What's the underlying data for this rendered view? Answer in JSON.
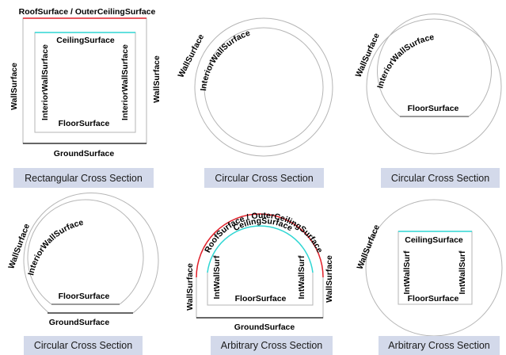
{
  "colors": {
    "roof": "#e0202a",
    "ceiling": "#2ed6d3",
    "wall": "#b5b5b5",
    "ground": "#333333",
    "caption_bg": "#d3d9ea"
  },
  "panels": [
    {
      "caption": "Rectangular Cross Section",
      "roof_label": "RoofSurface / OuterCeilingSurface",
      "ceiling_label": "CeilingSurface",
      "interior_left_label": "InteriorWallSurface",
      "interior_right_label": "InteriorWallSurface",
      "floor_label": "FloorSurface",
      "wall_left_label": "WallSurface",
      "wall_right_label": "WallSurface",
      "ground_label": "GroundSurface"
    },
    {
      "caption": "Circular Cross Section",
      "wall_label": "WallSurface",
      "interior_label": "InteriorWallSurface"
    },
    {
      "caption": "Circular Cross Section",
      "wall_label": "WallSurface",
      "interior_label": "InteriorWallSurface",
      "floor_label": "FloorSurface"
    },
    {
      "caption": "Circular Cross Section",
      "wall_label": "WallSurface",
      "interior_label": "InteriorWallSurface",
      "floor_label": "FloorSurface",
      "ground_label": "GroundSurface"
    },
    {
      "caption": "Arbitrary Cross Section",
      "roof_label": "RoofSurface / OuterCeilingSurface",
      "ceiling_label": "CeilingSurface",
      "int_left_label": "IntWallSurf",
      "int_right_label": "IntWallSurf",
      "floor_label": "FloorSurface",
      "wall_left_label": "WallSurface",
      "wall_right_label": "WallSurface",
      "ground_label": "GroundSurface"
    },
    {
      "caption": "Arbitrary Cross Section",
      "wall_label": "WallSurface",
      "ceiling_label": "CeilingSurface",
      "int_left_label": "IntWallSurf",
      "int_right_label": "IntWallSurf",
      "floor_label": "FloorSurface"
    }
  ]
}
